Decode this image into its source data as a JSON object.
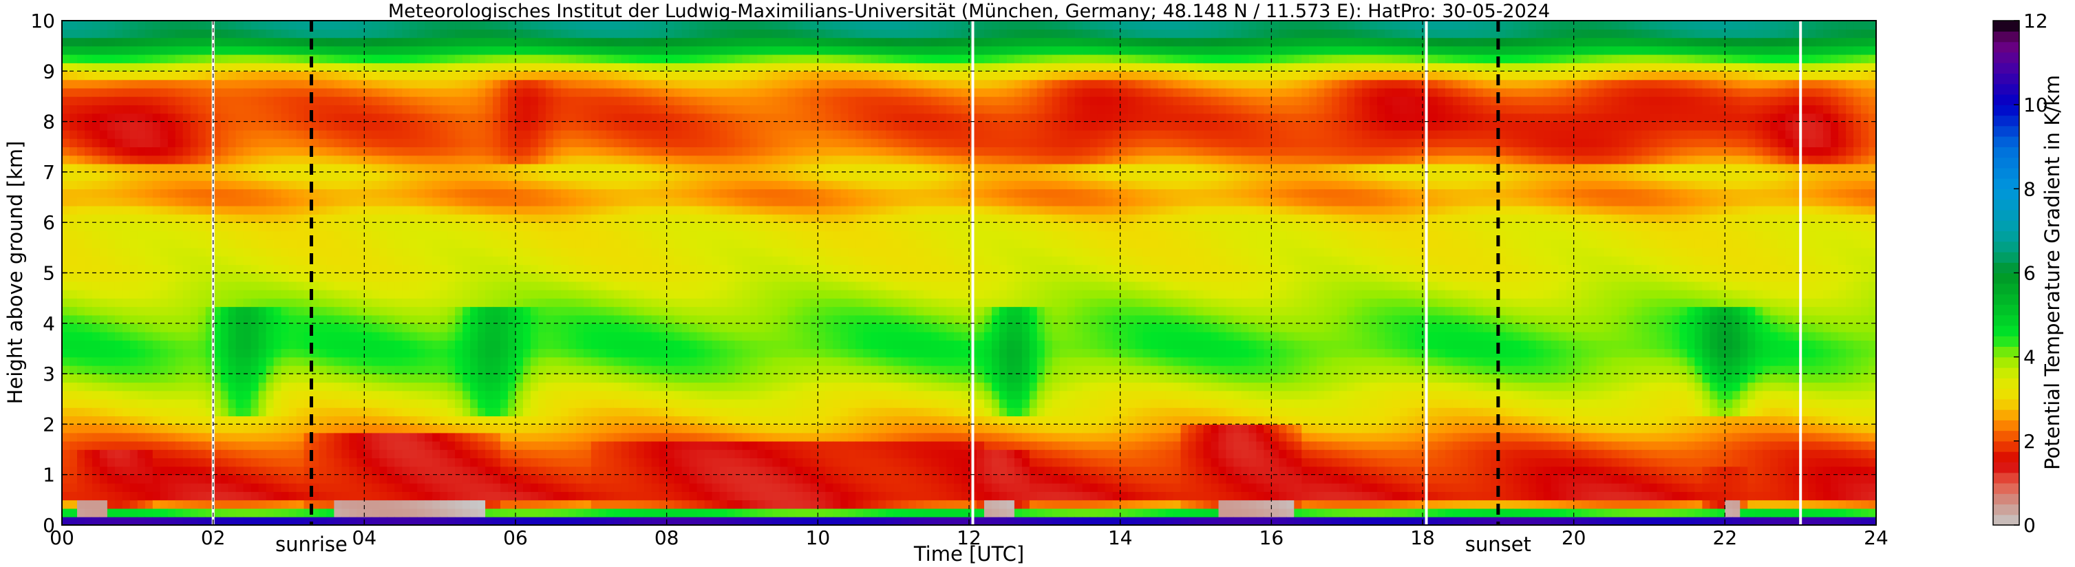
{
  "chart_data": {
    "type": "heatmap",
    "title": "Meteorologisches Institut der Ludwig-Maximilians-Universität (München, Germany; 48.148 N / 11.573 E):    HatPro: 30-05-2024",
    "xlabel": "Time [UTC]",
    "ylabel": "Height above ground [km]",
    "xlim": [
      0,
      24
    ],
    "ylim": [
      0,
      10
    ],
    "x_ticks": [
      "00",
      "02",
      "04",
      "06",
      "08",
      "10",
      "12",
      "14",
      "16",
      "18",
      "20",
      "22",
      "24"
    ],
    "y_ticks": [
      "0",
      "1",
      "2",
      "3",
      "4",
      "5",
      "6",
      "7",
      "8",
      "9",
      "10"
    ],
    "grid": true,
    "markers": [
      {
        "label": "sunrise",
        "x": 3.3
      },
      {
        "label": "sunset",
        "x": 19.0
      }
    ],
    "data_gaps_x": [
      2.0,
      12.05,
      18.05,
      23.0
    ],
    "colorbar": {
      "label": "Potential Temperature Gradient in K/km",
      "range": [
        0,
        12
      ],
      "ticks": [
        "0",
        "2",
        "4",
        "6",
        "8",
        "10",
        "12"
      ]
    },
    "field_description_profile": {
      "heights_km": [
        0.05,
        0.2,
        0.5,
        1.0,
        1.5,
        2.0,
        2.5,
        3.0,
        3.5,
        4.0,
        5.0,
        6.0,
        6.5,
        7.0,
        7.5,
        8.0,
        8.5,
        9.0,
        9.5,
        9.8
      ],
      "typical_gradient": [
        10,
        5,
        1.5,
        1.7,
        2.0,
        2.8,
        3.3,
        4.0,
        4.4,
        4.2,
        3.4,
        3.2,
        2.4,
        3.0,
        2.2,
        2.0,
        2.2,
        3.0,
        5.5,
        6.5
      ]
    }
  }
}
